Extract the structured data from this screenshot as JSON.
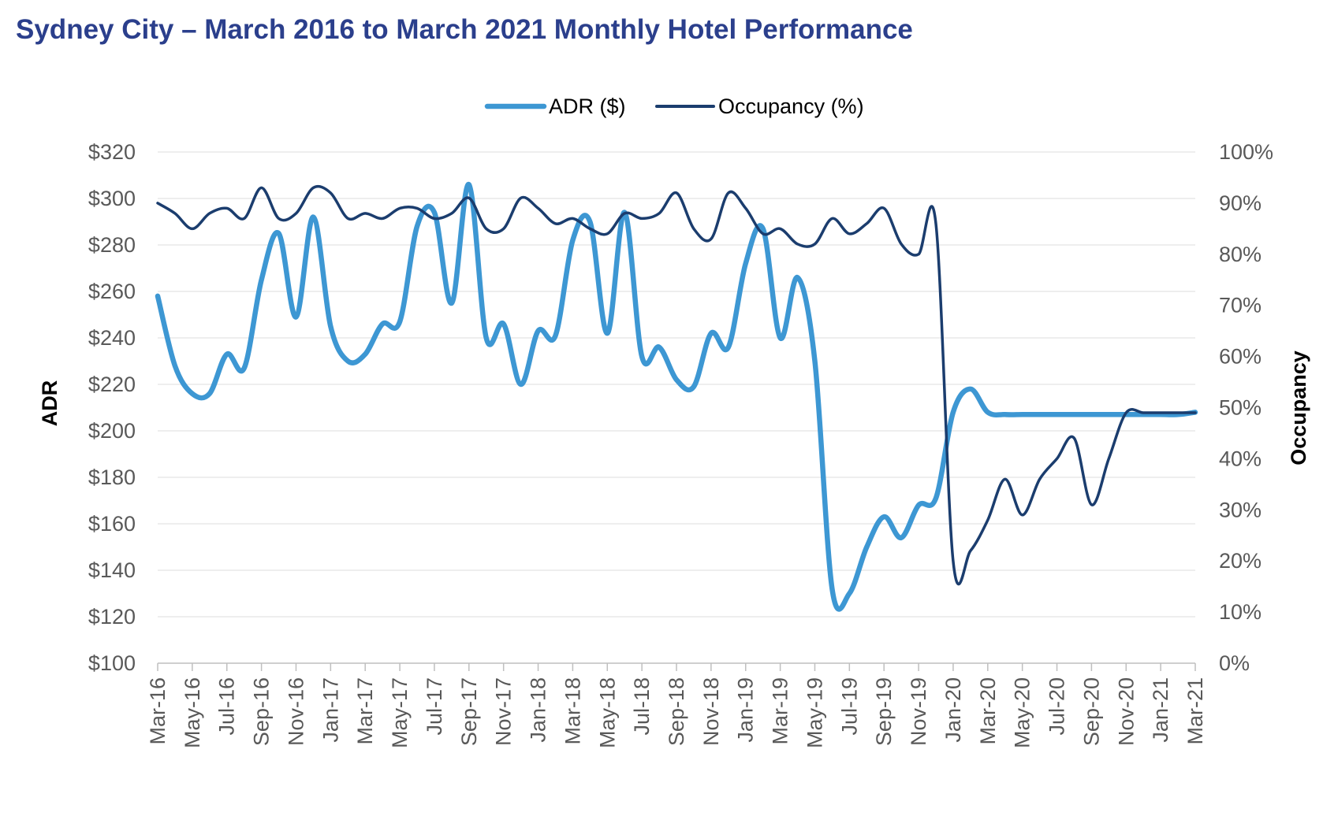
{
  "title": "Sydney City – March 2016 to March 2021 Monthly Hotel Performance",
  "colors": {
    "adr": "#3d97d3",
    "occupancy": "#1b3d6e",
    "title": "#2b3f8c",
    "grid": "#e3e3e3",
    "axis": "#bfbfbf",
    "tick_text": "#595959"
  },
  "chart_data": {
    "type": "line",
    "title": "Sydney City – March 2016 to March 2021 Monthly Hotel Performance",
    "x": [
      "Mar-16",
      "Apr-16",
      "May-16",
      "Jun-16",
      "Jul-16",
      "Aug-16",
      "Sep-16",
      "Oct-16",
      "Nov-16",
      "Dec-16",
      "Jan-17",
      "Feb-17",
      "Mar-17",
      "Apr-17",
      "May-17",
      "Jun-17",
      "Jul-17",
      "Aug-17",
      "Sep-17",
      "Oct-17",
      "Nov-17",
      "Dec-17",
      "Jan-18",
      "Feb-18",
      "Mar-18",
      "Apr-18",
      "May-18",
      "Jun-18",
      "Jul-18",
      "Aug-18",
      "Sep-18",
      "Oct-18",
      "Nov-18",
      "Dec-18",
      "Jan-19",
      "Feb-19",
      "Mar-19",
      "Apr-19",
      "May-19",
      "Jun-19",
      "Jul-19",
      "Aug-19",
      "Sep-19",
      "Oct-19",
      "Nov-19",
      "Dec-19",
      "Jan-20",
      "Feb-20",
      "Mar-20",
      "Apr-20",
      "May-20",
      "Jun-20",
      "Jul-20",
      "Aug-20",
      "Sep-20",
      "Oct-20",
      "Nov-20",
      "Dec-20",
      "Jan-21",
      "Feb-21",
      "Mar-21"
    ],
    "x_tick_labels": [
      "Mar-16",
      "May-16",
      "Jul-16",
      "Sep-16",
      "Nov-16",
      "Jan-17",
      "Mar-17",
      "May-17",
      "Jul-17",
      "Sep-17",
      "Nov-17",
      "Jan-18",
      "Mar-18",
      "May-18",
      "Jul-18",
      "Sep-18",
      "Nov-18",
      "Jan-19",
      "Mar-19",
      "May-19",
      "Jul-19",
      "Sep-19",
      "Nov-19",
      "Jan-20",
      "Mar-20",
      "May-20",
      "Jul-20",
      "Sep-20",
      "Nov-20",
      "Jan-21",
      "Mar-21"
    ],
    "series": [
      {
        "name": "ADR ($)",
        "axis": "left",
        "values": [
          258,
          228,
          216,
          216,
          233,
          227,
          265,
          285,
          249,
          292,
          245,
          230,
          233,
          246,
          247,
          288,
          294,
          255,
          306,
          240,
          246,
          220,
          243,
          241,
          282,
          290,
          242,
          294,
          232,
          236,
          222,
          219,
          242,
          236,
          272,
          287,
          240,
          266,
          230,
          132,
          130,
          150,
          163,
          154,
          168,
          171,
          208,
          218,
          208,
          207,
          207,
          207,
          207,
          207,
          207,
          207,
          207,
          207,
          207,
          207,
          208
        ]
      },
      {
        "name": "Occupancy (%)",
        "axis": "right",
        "values": [
          90,
          88,
          85,
          88,
          89,
          87,
          93,
          87,
          88,
          93,
          92,
          87,
          88,
          87,
          89,
          89,
          87,
          88,
          91,
          85,
          85,
          91,
          89,
          86,
          87,
          85,
          84,
          88,
          87,
          88,
          92,
          85,
          83,
          92,
          89,
          84,
          85,
          82,
          82,
          87,
          84,
          86,
          89,
          82,
          80,
          86,
          20,
          22,
          28,
          36,
          29,
          36,
          40,
          44,
          31,
          40,
          49,
          49,
          49,
          49,
          49
        ]
      }
    ],
    "y_left": {
      "label": "ADR",
      "min": 100,
      "max": 320,
      "step": 20,
      "tick_labels": [
        "$100",
        "$120",
        "$140",
        "$160",
        "$180",
        "$200",
        "$220",
        "$240",
        "$260",
        "$280",
        "$300",
        "$320"
      ]
    },
    "y_right": {
      "label": "Occupancy",
      "min": 0,
      "max": 100,
      "step": 10,
      "tick_labels": [
        "0%",
        "10%",
        "20%",
        "30%",
        "40%",
        "50%",
        "60%",
        "70%",
        "80%",
        "90%",
        "100%"
      ]
    },
    "grid": true,
    "legend": {
      "position": "top",
      "entries": [
        "ADR ($)",
        "Occupancy (%)"
      ]
    }
  }
}
